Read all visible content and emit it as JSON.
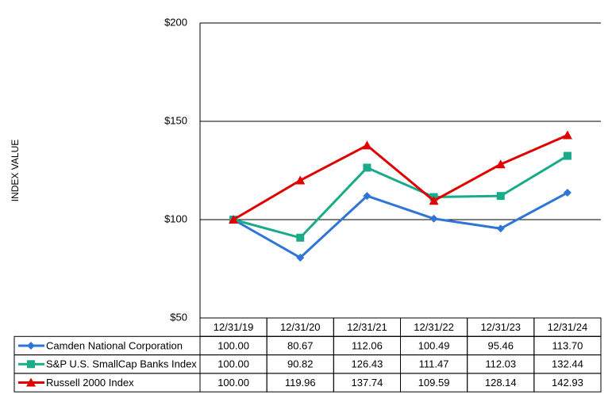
{
  "chart_data": {
    "type": "line",
    "y_label": "INDEX VALUE",
    "categories": [
      "12/31/19",
      "12/31/20",
      "12/31/21",
      "12/31/22",
      "12/31/23",
      "12/31/24"
    ],
    "series": [
      {
        "name": "Camden National Corporation",
        "color": "#2e75d6",
        "marker": "diamond",
        "values": [
          100,
          80.67,
          112.06,
          100.49,
          95.46,
          113.7
        ],
        "value_labels": [
          "100.00",
          "80.67",
          "112.06",
          "100.49",
          "95.46",
          "113.70"
        ]
      },
      {
        "name": "S&P U.S. SmallCap Banks Index",
        "color": "#1aab8a",
        "marker": "square",
        "values": [
          100,
          90.82,
          126.43,
          111.47,
          112.03,
          132.44
        ],
        "value_labels": [
          "100.00",
          "90.82",
          "126.43",
          "111.47",
          "112.03",
          "132.44"
        ]
      },
      {
        "name": "Russell 2000 Index",
        "color": "#e00000",
        "marker": "triangle",
        "values": [
          100,
          119.96,
          137.74,
          109.59,
          128.14,
          142.93
        ],
        "value_labels": [
          "100.00",
          "119.96",
          "137.74",
          "109.59",
          "128.14",
          "142.93"
        ]
      }
    ],
    "ylim": [
      50,
      200
    ],
    "yticks": [
      {
        "value": 50,
        "label": "$50"
      },
      {
        "value": 100,
        "label": "$100"
      },
      {
        "value": 150,
        "label": "$150"
      },
      {
        "value": 200,
        "label": "$200"
      }
    ],
    "grid": true
  }
}
